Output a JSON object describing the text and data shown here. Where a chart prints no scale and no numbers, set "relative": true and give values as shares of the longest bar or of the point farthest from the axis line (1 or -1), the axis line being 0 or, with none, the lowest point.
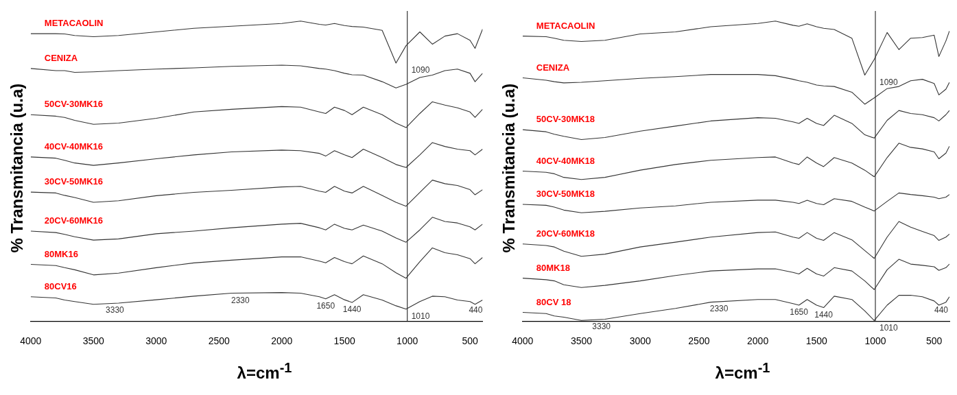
{
  "chart_data": [
    {
      "type": "line",
      "relative": true,
      "xlabel": "λ=cm$^{-1}$",
      "ylabel": "% Transmitancia (u.a)",
      "xlim": [
        4000,
        400
      ],
      "xticks": [
        4000,
        3500,
        3000,
        2500,
        2000,
        1500,
        1000,
        500
      ],
      "grid": false,
      "legend": false,
      "x": [
        4000,
        3800,
        3730,
        3650,
        3500,
        3300,
        3000,
        2700,
        2400,
        2000,
        1850,
        1700,
        1650,
        1580,
        1500,
        1440,
        1350,
        1200,
        1090,
        1010,
        900,
        800,
        700,
        600,
        500,
        460,
        400
      ],
      "series": [
        {
          "name": "METACAOLIN",
          "color": "#333333",
          "values": [
            0.958,
            0.958,
            0.957,
            0.952,
            0.948,
            0.952,
            0.964,
            0.976,
            0.983,
            0.992,
            1.0,
            0.989,
            0.987,
            0.992,
            0.985,
            0.982,
            0.98,
            0.969,
            0.86,
            0.918,
            0.964,
            0.923,
            0.95,
            0.958,
            0.936,
            0.909,
            0.973
          ]
        },
        {
          "name": "CENIZA",
          "color": "#333333",
          "values": [
            0.842,
            0.835,
            0.835,
            0.829,
            0.831,
            0.835,
            0.84,
            0.844,
            0.849,
            0.853,
            0.851,
            0.842,
            0.84,
            0.835,
            0.826,
            0.821,
            0.82,
            0.798,
            0.777,
            0.789,
            0.812,
            0.82,
            0.835,
            0.84,
            0.826,
            0.798,
            0.826
          ]
        },
        {
          "name": "50CV-30MK16",
          "color": "#333333",
          "values": [
            0.688,
            0.683,
            0.679,
            0.669,
            0.656,
            0.66,
            0.676,
            0.697,
            0.706,
            0.715,
            0.713,
            0.697,
            0.692,
            0.713,
            0.702,
            0.688,
            0.713,
            0.688,
            0.66,
            0.645,
            0.692,
            0.731,
            0.72,
            0.711,
            0.697,
            0.679,
            0.706
          ]
        },
        {
          "name": "40CV-40MK16",
          "color": "#333333",
          "values": [
            0.547,
            0.543,
            0.536,
            0.527,
            0.519,
            0.527,
            0.541,
            0.554,
            0.564,
            0.57,
            0.568,
            0.559,
            0.55,
            0.568,
            0.554,
            0.545,
            0.573,
            0.545,
            0.522,
            0.512,
            0.554,
            0.595,
            0.582,
            0.573,
            0.568,
            0.554,
            0.573
          ]
        },
        {
          "name": "30CV-50MK16",
          "color": "#333333",
          "values": [
            0.43,
            0.427,
            0.419,
            0.412,
            0.396,
            0.401,
            0.418,
            0.429,
            0.436,
            0.447,
            0.449,
            0.433,
            0.429,
            0.449,
            0.433,
            0.427,
            0.449,
            0.419,
            0.396,
            0.383,
            0.429,
            0.47,
            0.458,
            0.452,
            0.438,
            0.421,
            0.438
          ]
        },
        {
          "name": "20CV-60MK16",
          "color": "#333333",
          "values": [
            0.3,
            0.295,
            0.289,
            0.281,
            0.27,
            0.274,
            0.291,
            0.3,
            0.311,
            0.323,
            0.326,
            0.311,
            0.304,
            0.323,
            0.309,
            0.304,
            0.32,
            0.3,
            0.277,
            0.263,
            0.304,
            0.346,
            0.332,
            0.327,
            0.314,
            0.304,
            0.323
          ]
        },
        {
          "name": "80MK16",
          "color": "#333333",
          "values": [
            0.189,
            0.185,
            0.178,
            0.171,
            0.154,
            0.16,
            0.178,
            0.194,
            0.203,
            0.214,
            0.214,
            0.2,
            0.194,
            0.212,
            0.198,
            0.191,
            0.217,
            0.191,
            0.161,
            0.143,
            0.198,
            0.244,
            0.228,
            0.221,
            0.208,
            0.191,
            0.212
          ]
        },
        {
          "name": "80CV16",
          "color": "#333333",
          "values": [
            0.081,
            0.077,
            0.07,
            0.065,
            0.056,
            0.06,
            0.071,
            0.083,
            0.093,
            0.095,
            0.093,
            0.081,
            0.074,
            0.088,
            0.071,
            0.062,
            0.088,
            0.07,
            0.051,
            0.04,
            0.065,
            0.083,
            0.081,
            0.07,
            0.065,
            0.056,
            0.07
          ]
        }
      ],
      "ref_lines": [
        {
          "axis": "x",
          "value": 1000,
          "color": "#333333"
        }
      ],
      "annotations": [
        {
          "text": "1090",
          "x": 1090,
          "y": 0.86
        },
        {
          "text": "3330",
          "x": 3330,
          "y": 0.06
        },
        {
          "text": "2330",
          "x": 2330,
          "y": 0.093
        },
        {
          "text": "1650",
          "x": 1650,
          "y": 0.074
        },
        {
          "text": "1440",
          "x": 1440,
          "y": 0.062
        },
        {
          "text": "1010",
          "x": 1010,
          "y": 0.04
        },
        {
          "text": "440",
          "x": 440,
          "y": 0.061
        }
      ]
    },
    {
      "type": "line",
      "relative": true,
      "xlabel": "λ=cm$^{-1}$",
      "ylabel": "% Transmitancia (u.a)",
      "xlim": [
        4000,
        370
      ],
      "xticks": [
        4000,
        3500,
        3000,
        2500,
        2000,
        1500,
        1000,
        500
      ],
      "grid": false,
      "legend": false,
      "x": [
        4000,
        3800,
        3730,
        3650,
        3500,
        3300,
        3000,
        2700,
        2400,
        2000,
        1850,
        1700,
        1650,
        1580,
        1500,
        1440,
        1350,
        1200,
        1090,
        1010,
        900,
        800,
        700,
        600,
        500,
        460,
        400,
        370
      ],
      "series": [
        {
          "name": "METACAOLIN",
          "color": "#333333",
          "values": [
            0.95,
            0.948,
            0.943,
            0.936,
            0.932,
            0.936,
            0.957,
            0.964,
            0.981,
            0.992,
            1.0,
            0.986,
            0.983,
            0.991,
            0.981,
            0.976,
            0.972,
            0.943,
            0.82,
            0.872,
            0.962,
            0.905,
            0.943,
            0.945,
            0.953,
            0.882,
            0.934,
            0.967
          ]
        },
        {
          "name": "CENIZA",
          "color": "#333333",
          "values": [
            0.811,
            0.803,
            0.798,
            0.794,
            0.796,
            0.801,
            0.809,
            0.815,
            0.822,
            0.822,
            0.818,
            0.806,
            0.801,
            0.796,
            0.787,
            0.784,
            0.782,
            0.763,
            0.723,
            0.744,
            0.775,
            0.782,
            0.801,
            0.806,
            0.792,
            0.754,
            0.773,
            0.796
          ]
        },
        {
          "name": "50CV-30MK18",
          "color": "#333333",
          "values": [
            0.638,
            0.631,
            0.623,
            0.616,
            0.605,
            0.612,
            0.633,
            0.65,
            0.667,
            0.678,
            0.676,
            0.664,
            0.659,
            0.676,
            0.659,
            0.652,
            0.686,
            0.659,
            0.621,
            0.61,
            0.669,
            0.702,
            0.692,
            0.688,
            0.678,
            0.667,
            0.688,
            0.702
          ]
        },
        {
          "name": "40CV-40MK18",
          "color": "#333333",
          "values": [
            0.5,
            0.496,
            0.491,
            0.479,
            0.472,
            0.479,
            0.503,
            0.522,
            0.536,
            0.545,
            0.547,
            0.527,
            0.522,
            0.547,
            0.527,
            0.515,
            0.545,
            0.527,
            0.503,
            0.481,
            0.545,
            0.593,
            0.579,
            0.574,
            0.564,
            0.541,
            0.56,
            0.583
          ]
        },
        {
          "name": "30CV-50MK18",
          "color": "#333333",
          "values": [
            0.389,
            0.386,
            0.38,
            0.37,
            0.361,
            0.366,
            0.377,
            0.384,
            0.396,
            0.403,
            0.403,
            0.396,
            0.392,
            0.403,
            0.392,
            0.388,
            0.408,
            0.399,
            0.38,
            0.367,
            0.399,
            0.427,
            0.422,
            0.418,
            0.413,
            0.408,
            0.413,
            0.422
          ]
        },
        {
          "name": "20CV-60MK18",
          "color": "#333333",
          "values": [
            0.257,
            0.252,
            0.247,
            0.233,
            0.216,
            0.223,
            0.247,
            0.263,
            0.28,
            0.295,
            0.297,
            0.28,
            0.276,
            0.295,
            0.276,
            0.269,
            0.295,
            0.271,
            0.235,
            0.209,
            0.28,
            0.332,
            0.313,
            0.299,
            0.285,
            0.269,
            0.28,
            0.29
          ]
        },
        {
          "name": "80MK18",
          "color": "#333333",
          "values": [
            0.143,
            0.138,
            0.134,
            0.121,
            0.112,
            0.119,
            0.134,
            0.152,
            0.167,
            0.174,
            0.174,
            0.162,
            0.157,
            0.176,
            0.157,
            0.15,
            0.178,
            0.167,
            0.134,
            0.105,
            0.171,
            0.206,
            0.19,
            0.186,
            0.181,
            0.169,
            0.178,
            0.19
          ]
        },
        {
          "name": "80CV 18",
          "color": "#333333",
          "values": [
            0.029,
            0.025,
            0.017,
            0.013,
            0.002,
            0.006,
            0.025,
            0.042,
            0.063,
            0.072,
            0.072,
            0.058,
            0.053,
            0.072,
            0.053,
            0.045,
            0.083,
            0.072,
            0.034,
            0.002,
            0.053,
            0.086,
            0.086,
            0.081,
            0.067,
            0.053,
            0.063,
            0.081
          ]
        }
      ],
      "ref_lines": [
        {
          "axis": "x",
          "value": 1000,
          "color": "#333333"
        }
      ],
      "annotations": [
        {
          "text": "1090",
          "x": 1090,
          "y": 0.82
        },
        {
          "text": "3330",
          "x": 3330,
          "y": 0.006
        },
        {
          "text": "2330",
          "x": 2330,
          "y": 0.065
        },
        {
          "text": "1650",
          "x": 1650,
          "y": 0.053
        },
        {
          "text": "1440",
          "x": 1440,
          "y": 0.045
        },
        {
          "text": "1010",
          "x": 1010,
          "y": 0.002
        },
        {
          "text": "440",
          "x": 440,
          "y": 0.06
        }
      ]
    }
  ]
}
